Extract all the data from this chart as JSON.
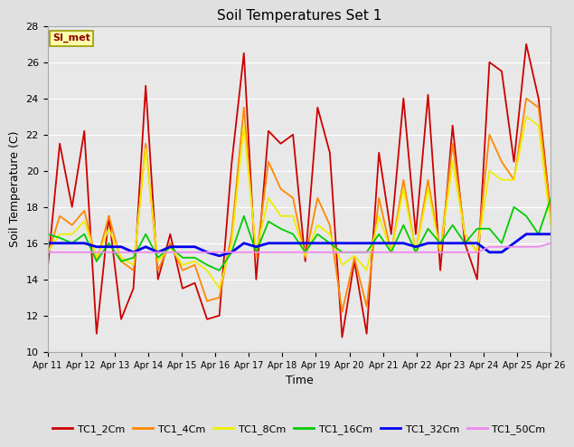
{
  "title": "Soil Temperatures Set 1",
  "xlabel": "Time",
  "ylabel": "Soil Temperature (C)",
  "ylim": [
    10,
    28
  ],
  "fig_bg_color": "#e0e0e0",
  "plot_bg_color": "#e8e8e8",
  "annotation_text": "SI_met",
  "annotation_bg": "#ffffaa",
  "annotation_border": "#999900",
  "series": {
    "TC1_2Cm": {
      "color": "#cc0000",
      "linewidth": 1.3,
      "values": [
        14.5,
        21.5,
        18.0,
        22.2,
        11.0,
        17.5,
        11.8,
        13.5,
        24.7,
        14.0,
        16.5,
        13.5,
        13.8,
        11.8,
        12.0,
        20.4,
        26.5,
        14.0,
        22.2,
        21.5,
        22.0,
        15.0,
        23.5,
        21.0,
        10.8,
        15.0,
        11.0,
        21.0,
        16.5,
        24.0,
        16.5,
        24.2,
        14.5,
        22.5,
        16.0,
        14.0,
        26.0,
        25.5,
        20.5,
        27.0,
        24.0,
        17.5
      ]
    },
    "TC1_4Cm": {
      "color": "#ff8800",
      "linewidth": 1.3,
      "values": [
        15.3,
        17.5,
        17.0,
        17.8,
        15.0,
        17.5,
        15.0,
        14.5,
        21.5,
        14.5,
        16.0,
        14.5,
        14.8,
        12.8,
        13.0,
        16.5,
        23.5,
        15.2,
        20.5,
        19.0,
        18.5,
        15.2,
        18.5,
        17.0,
        12.2,
        15.2,
        12.5,
        18.5,
        15.5,
        19.5,
        15.5,
        19.5,
        15.5,
        21.5,
        16.5,
        15.5,
        22.0,
        20.5,
        19.5,
        24.0,
        23.5,
        17.5
      ]
    },
    "TC1_8Cm": {
      "color": "#eeee00",
      "linewidth": 1.3,
      "values": [
        15.5,
        16.5,
        16.5,
        17.2,
        15.2,
        16.8,
        15.2,
        14.8,
        21.2,
        15.0,
        15.8,
        14.8,
        15.0,
        14.5,
        13.5,
        16.0,
        22.5,
        15.5,
        18.5,
        17.5,
        17.5,
        15.3,
        17.0,
        16.5,
        14.8,
        15.3,
        14.5,
        17.5,
        15.5,
        19.0,
        15.5,
        19.0,
        15.5,
        20.5,
        16.5,
        15.5,
        20.0,
        19.5,
        19.5,
        23.0,
        22.5,
        17.0
      ]
    },
    "TC1_16Cm": {
      "color": "#00cc00",
      "linewidth": 1.3,
      "values": [
        16.5,
        16.3,
        16.0,
        16.5,
        15.0,
        16.0,
        15.0,
        15.2,
        16.5,
        15.2,
        15.8,
        15.2,
        15.2,
        14.8,
        14.5,
        15.5,
        17.5,
        15.5,
        17.2,
        16.8,
        16.5,
        15.5,
        16.5,
        16.0,
        15.5,
        15.5,
        15.5,
        16.5,
        15.5,
        17.0,
        15.5,
        16.8,
        16.0,
        17.0,
        16.0,
        16.8,
        16.8,
        16.0,
        18.0,
        17.5,
        16.5,
        18.5
      ]
    },
    "TC1_32Cm": {
      "color": "#0000ee",
      "linewidth": 2.0,
      "values": [
        16.0,
        16.0,
        16.0,
        16.0,
        15.8,
        15.8,
        15.8,
        15.5,
        15.8,
        15.5,
        15.8,
        15.8,
        15.8,
        15.5,
        15.3,
        15.5,
        16.0,
        15.8,
        16.0,
        16.0,
        16.0,
        16.0,
        16.0,
        16.0,
        16.0,
        16.0,
        16.0,
        16.0,
        16.0,
        16.0,
        15.8,
        16.0,
        16.0,
        16.0,
        16.0,
        16.0,
        15.5,
        15.5,
        16.0,
        16.5,
        16.5,
        16.5
      ]
    },
    "TC1_50Cm": {
      "color": "#ee88ee",
      "linewidth": 1.3,
      "values": [
        15.5,
        15.5,
        15.5,
        15.5,
        15.5,
        15.5,
        15.5,
        15.5,
        15.5,
        15.5,
        15.5,
        15.5,
        15.5,
        15.5,
        15.5,
        15.5,
        15.5,
        15.5,
        15.5,
        15.5,
        15.5,
        15.5,
        15.5,
        15.5,
        15.5,
        15.5,
        15.5,
        15.5,
        15.5,
        15.5,
        15.5,
        15.5,
        15.5,
        15.5,
        15.5,
        15.5,
        15.8,
        15.8,
        15.8,
        15.8,
        15.8,
        16.0
      ]
    }
  },
  "xtick_labels": [
    "Apr 11",
    "Apr 12",
    "Apr 13",
    "Apr 14",
    "Apr 15",
    "Apr 16",
    "Apr 17",
    "Apr 18",
    "Apr 19",
    "Apr 20",
    "Apr 21",
    "Apr 22",
    "Apr 23",
    "Apr 24",
    "Apr 25",
    "Apr 26"
  ],
  "ytick_values": [
    10,
    12,
    14,
    16,
    18,
    20,
    22,
    24,
    26,
    28
  ],
  "legend_order": [
    "TC1_2Cm",
    "TC1_4Cm",
    "TC1_8Cm",
    "TC1_16Cm",
    "TC1_32Cm",
    "TC1_50Cm"
  ],
  "legend_colors": [
    "#cc0000",
    "#ff8800",
    "#eeee00",
    "#00cc00",
    "#0000ee",
    "#ee88ee"
  ]
}
